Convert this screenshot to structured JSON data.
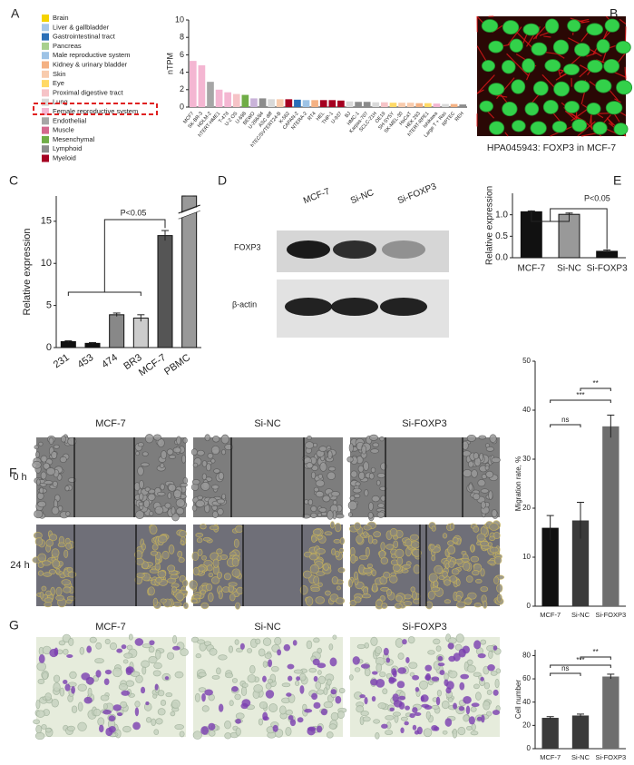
{
  "panels": [
    "A",
    "B",
    "C",
    "D",
    "E",
    "F",
    "G"
  ],
  "image_b": {
    "caption": "HPA045943: FOXP3 in MCF-7"
  },
  "blot_d": {
    "lanes": [
      "MCF-7",
      "Si-NC",
      "Si-FOXP3"
    ],
    "rows": [
      "FOXP3",
      "β-actin"
    ]
  },
  "migration_f": {
    "columns": [
      "MCF-7",
      "Si-NC",
      "Si-FOXP3"
    ],
    "rows": [
      "0 h",
      "24 h"
    ]
  },
  "invasion_g": {
    "columns": [
      "MCF-7",
      "Si-NC",
      "Si-FOXP3"
    ]
  },
  "chart_data": [
    {
      "type": "bar",
      "ylabel": "nTPM",
      "ylim": [
        0,
        10
      ],
      "yticks": [
        0,
        2,
        4,
        6,
        8,
        10
      ],
      "categories": [
        "MCF7",
        "SK-BR-3",
        "HDLM-2",
        "hTERT-HME1",
        "T-47d",
        "U-2 OS",
        "U-698",
        "BEWO",
        "U-266/84",
        "ASC diff",
        "hTEC/SVTERT24-B",
        "K-562",
        "CAPAN-2",
        "NTERA-2",
        "RT4",
        "HEL",
        "THP-1",
        "U-937",
        "BJ",
        "HMC-1",
        "Karpas-707",
        "SCLC-21H",
        "OE19",
        "SH-SY5Y",
        "SK-MEL-30",
        "HaCaT",
        "HEK 293",
        "hTERT-RPE1",
        "Ishikawa",
        "Large T + Ras",
        "RPTEC",
        "REH"
      ],
      "values": [
        5.3,
        4.8,
        2.9,
        2.0,
        1.7,
        1.5,
        1.4,
        1.0,
        1.0,
        0.9,
        0.9,
        0.9,
        0.85,
        0.8,
        0.8,
        0.8,
        0.8,
        0.75,
        0.65,
        0.6,
        0.6,
        0.55,
        0.55,
        0.5,
        0.5,
        0.5,
        0.45,
        0.45,
        0.4,
        0.35,
        0.35,
        0.3
      ],
      "colors": [
        "#f4b6d2",
        "#f4b6d2",
        "#a6a6a6",
        "#f4b6d2",
        "#f4b6d2",
        "#f6c3c7",
        "#70ad47",
        "#c9b3d9",
        "#8c8c8c",
        "#d9d9d9",
        "#f8cbad",
        "#a50021",
        "#2a6fb8",
        "#9dc3e6",
        "#f4b183",
        "#a50021",
        "#a50021",
        "#a50021",
        "#d9d9d9",
        "#8c8c8c",
        "#8c8c8c",
        "#d9d9d9",
        "#f6c3c7",
        "#ffd966",
        "#f8cbad",
        "#f8cbad",
        "#f4b183",
        "#ffd966",
        "#f4b6d2",
        "#d9d9d9",
        "#f4b183",
        "#8c8c8c"
      ],
      "legend": [
        {
          "name": "Brain",
          "color": "#f5d300"
        },
        {
          "name": "Liver & gallbladder",
          "color": "#a7c7e7"
        },
        {
          "name": "Gastrointestinal tract",
          "color": "#2a6fb8"
        },
        {
          "name": "Pancreas",
          "color": "#a8d08d"
        },
        {
          "name": "Male reproductive system",
          "color": "#9dc3e6"
        },
        {
          "name": "Kidney & urinary bladder",
          "color": "#f4b183"
        },
        {
          "name": "Skin",
          "color": "#f8cbad"
        },
        {
          "name": "Eye",
          "color": "#ffd966"
        },
        {
          "name": "Proximal digestive tract",
          "color": "#f6c3c7"
        },
        {
          "name": "Lung",
          "color": "#d9d9d9"
        },
        {
          "name": "Female reproductive system",
          "color": "#f4b6d2"
        },
        {
          "name": "Endothelial",
          "color": "#a6a6a6"
        },
        {
          "name": "Muscle",
          "color": "#d4688e"
        },
        {
          "name": "Mesenchymal",
          "color": "#70ad47"
        },
        {
          "name": "Lymphoid",
          "color": "#8c8c8c"
        },
        {
          "name": "Myeloid",
          "color": "#a50021"
        }
      ]
    },
    {
      "type": "bar",
      "ylabel": "Relative expression",
      "ylim": [
        0,
        18
      ],
      "yticks": [
        0,
        5,
        10,
        15
      ],
      "categories": [
        "231",
        "453",
        "474",
        "BR3",
        "MCF-7",
        "PBMC"
      ],
      "values": [
        0.7,
        0.5,
        3.9,
        3.5,
        13.3,
        18
      ],
      "errors": [
        0.1,
        0.1,
        0.2,
        0.4,
        0.6,
        0
      ],
      "colors": [
        "#111111",
        "#111111",
        "#888888",
        "#cccccc",
        "#555555",
        "#999999"
      ],
      "annotations": [
        "P<0.05"
      ]
    },
    {
      "type": "bar",
      "ylabel": "Relative expression",
      "ylim": [
        0,
        1.5
      ],
      "yticks": [
        {
          "value": 0,
          "label": "0.0"
        },
        0.5,
        {
          "value": 1,
          "label": "1.0"
        }
      ],
      "categories": [
        "MCF-7",
        "Si-NC",
        "Si-FOXP3"
      ],
      "values": [
        1.07,
        1.01,
        0.15
      ],
      "errors": [
        0.02,
        0.03,
        0.03
      ],
      "colors": [
        "#111111",
        "#999999",
        "#111111"
      ],
      "annotations": [
        "P<0.05"
      ]
    },
    {
      "type": "bar",
      "ylabel": "Migration rate, %",
      "ylim": [
        0,
        50
      ],
      "yticks": [
        0,
        10,
        20,
        30,
        40,
        50
      ],
      "categories": [
        "MCF-7",
        "Si-NC",
        "Si-FOXP3"
      ],
      "values": [
        16,
        17.5,
        36.7
      ],
      "errors": [
        2.5,
        3.7,
        2.3
      ],
      "colors": [
        "#111111",
        "#3a3a3a",
        "#6e6e6e"
      ],
      "annotations": [
        "ns",
        "***",
        "**"
      ]
    },
    {
      "type": "bar",
      "ylabel": "Cell number",
      "ylim": [
        0,
        85
      ],
      "yticks": [
        0,
        20,
        40,
        60,
        80
      ],
      "categories": [
        "MCF-7",
        "Si-NC",
        "Si-FOXP3"
      ],
      "values": [
        26.5,
        28.5,
        62
      ],
      "errors": [
        1,
        1.2,
        2
      ],
      "colors": [
        "#3a3a3a",
        "#3a3a3a",
        "#6e6e6e"
      ],
      "annotations": [
        "ns",
        "***",
        "**"
      ]
    }
  ]
}
